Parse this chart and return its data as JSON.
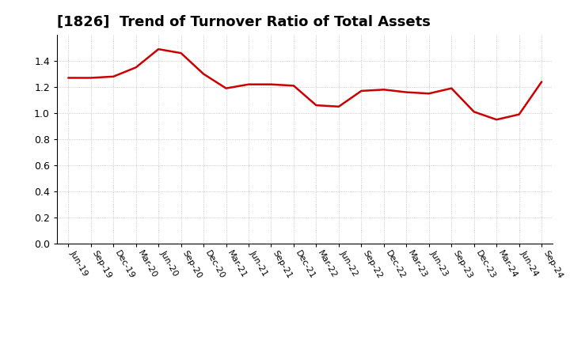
{
  "title": "[1826]  Trend of Turnover Ratio of Total Assets",
  "line_color": "#cc0000",
  "background_color": "#ffffff",
  "grid_color": "#aaaaaa",
  "ylim": [
    0.0,
    1.6
  ],
  "yticks": [
    0.0,
    0.2,
    0.4,
    0.6,
    0.8,
    1.0,
    1.2,
    1.4
  ],
  "labels": [
    "Jun-19",
    "Sep-19",
    "Dec-19",
    "Mar-20",
    "Jun-20",
    "Sep-20",
    "Dec-20",
    "Mar-21",
    "Jun-21",
    "Sep-21",
    "Dec-21",
    "Mar-22",
    "Jun-22",
    "Sep-22",
    "Dec-22",
    "Mar-23",
    "Jun-23",
    "Sep-23",
    "Dec-23",
    "Mar-24",
    "Jun-24",
    "Sep-24"
  ],
  "values": [
    1.27,
    1.27,
    1.28,
    1.35,
    1.49,
    1.46,
    1.3,
    1.19,
    1.22,
    1.22,
    1.21,
    1.06,
    1.05,
    1.17,
    1.18,
    1.16,
    1.15,
    1.19,
    1.01,
    0.95,
    0.99,
    1.24
  ],
  "title_fontsize": 13,
  "label_fontsize": 8,
  "ytick_fontsize": 9,
  "linewidth": 1.8
}
